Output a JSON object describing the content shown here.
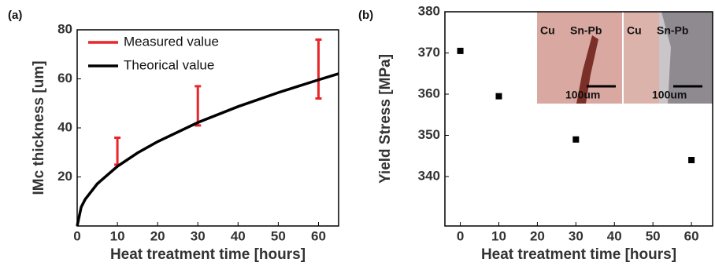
{
  "chart_data": [
    {
      "type": "line",
      "panel": "(a)",
      "xlabel": "Heat treatment time [hours]",
      "ylabel": "IMc thickness [um]",
      "xlim": [
        0,
        65
      ],
      "ylim": [
        0,
        80
      ],
      "xticks": [
        0,
        10,
        20,
        30,
        40,
        50,
        60
      ],
      "yticks": [
        20,
        40,
        60,
        80
      ],
      "series": [
        {
          "name": "Measured value",
          "color": "#e8262a",
          "x": [
            10,
            30,
            60
          ],
          "low": [
            25,
            41,
            52
          ],
          "high": [
            36,
            57,
            76
          ]
        },
        {
          "name": "Theorical value",
          "color": "#000000",
          "x": [
            0,
            1,
            2,
            5,
            10,
            15,
            20,
            30,
            40,
            50,
            60,
            65
          ],
          "values": [
            0,
            7.7,
            10.9,
            17.2,
            24.3,
            29.8,
            34.4,
            42.2,
            48.7,
            54.4,
            59.6,
            62.1
          ]
        }
      ]
    },
    {
      "type": "scatter",
      "panel": "(b)",
      "xlabel": "Heat treatment time [hours]",
      "ylabel": "Yield Stress [MPa]",
      "xlim": [
        -4,
        65.5
      ],
      "ylim": [
        328,
        380
      ],
      "xticks": [
        0,
        10,
        20,
        30,
        40,
        50,
        60
      ],
      "yticks": [
        340,
        350,
        360,
        370,
        380
      ],
      "x": [
        0,
        10,
        30,
        60
      ],
      "values": [
        370.5,
        359.5,
        349,
        344
      ],
      "color": "#000000",
      "insets": [
        {
          "labels": [
            "Cu",
            "Sn-Pb"
          ],
          "scale": "100um"
        },
        {
          "labels": [
            "Cu",
            "Sn-Pb"
          ],
          "scale": "100um"
        }
      ]
    }
  ]
}
